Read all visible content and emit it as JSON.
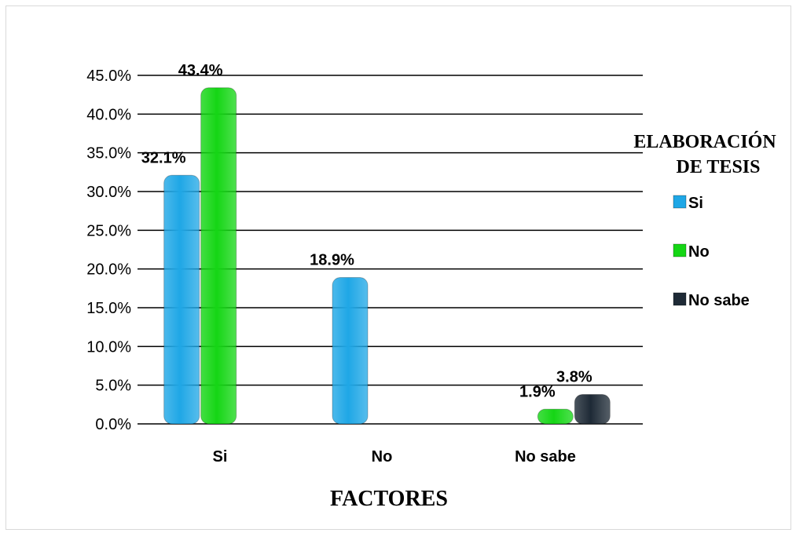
{
  "chart_data": {
    "type": "bar",
    "categories": [
      "Si",
      "No",
      "No sabe"
    ],
    "series": [
      {
        "name": "Si",
        "values": [
          32.1,
          18.9,
          null
        ],
        "color": "#1fa7e6"
      },
      {
        "name": "No",
        "values": [
          43.4,
          null,
          1.9
        ],
        "color": "#15d615"
      },
      {
        "name": "No sabe",
        "values": [
          null,
          null,
          3.8
        ],
        "color": "#1e2a36"
      }
    ],
    "data_labels": {
      "Si": [
        "32.1%",
        "18.9%",
        ""
      ],
      "No": [
        "43.4%",
        "",
        "1.9%"
      ],
      "No sabe": [
        "",
        "",
        "3.8%"
      ]
    },
    "yticks": [
      "0.0%",
      "5.0%",
      "10.0%",
      "15.0%",
      "20.0%",
      "25.0%",
      "30.0%",
      "35.0%",
      "40.0%",
      "45.0%"
    ],
    "ylim": [
      0,
      45
    ],
    "xlabel": "FACTORES",
    "legend_title_line1": "ELABORACIÓN",
    "legend_title_line2": "DE TESIS",
    "legend_placement": "right",
    "grid": true
  }
}
